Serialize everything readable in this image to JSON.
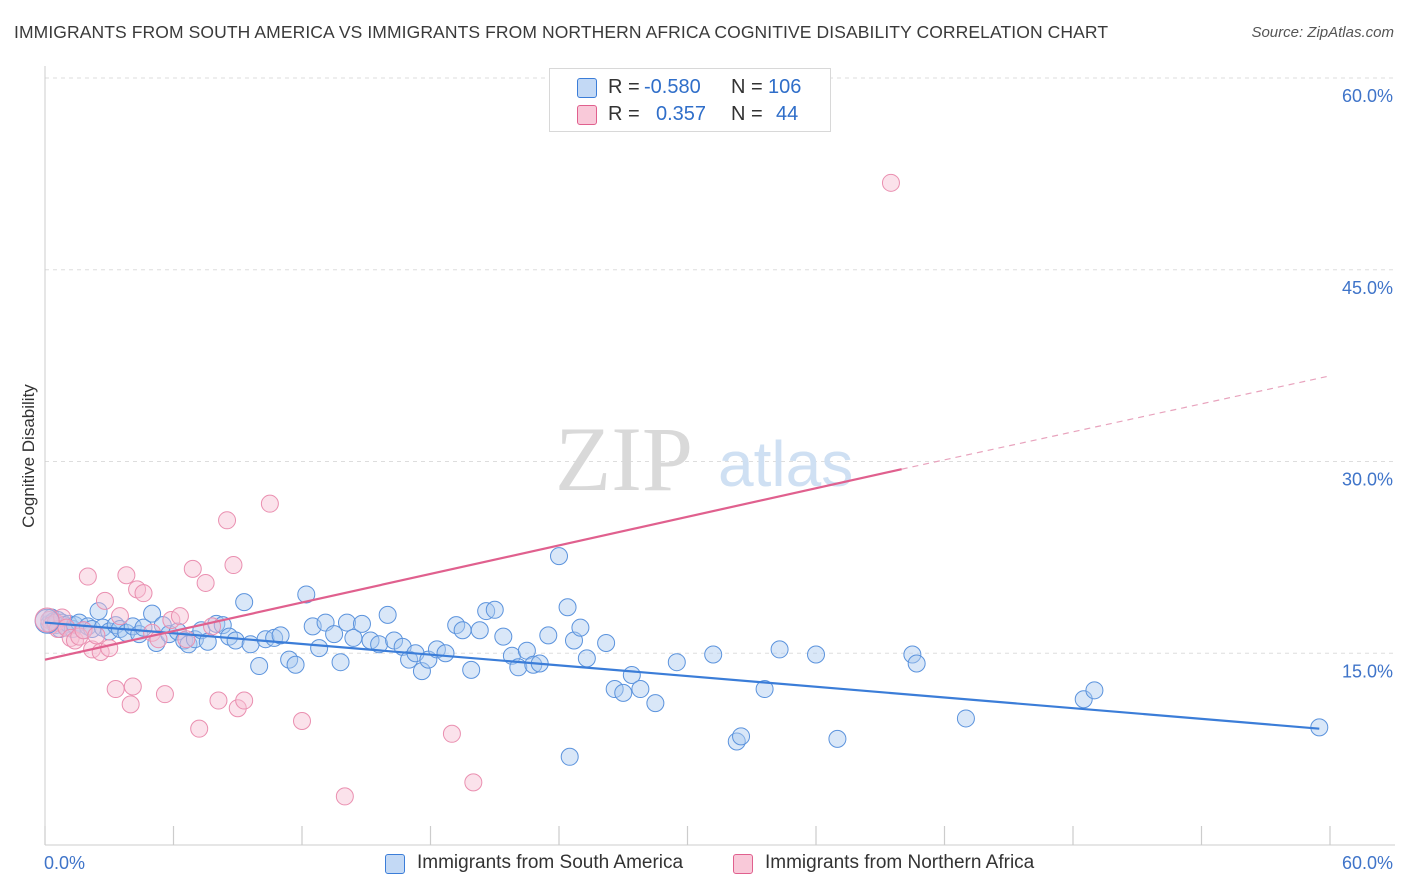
{
  "title": "IMMIGRANTS FROM SOUTH AMERICA VS IMMIGRANTS FROM NORTHERN AFRICA COGNITIVE DISABILITY CORRELATION CHART",
  "source": "Source: ZipAtlas.com",
  "watermark": {
    "zip": "ZIP",
    "atlas": "atlas"
  },
  "colors": {
    "blue": "#2f6ec9",
    "blue_fill": "#aac9f0",
    "blue_line": "#3b7dd8",
    "pink": "#e0608e",
    "pink_fill": "#f7bfd2",
    "tick_text": "#3f74c9"
  },
  "legend": {
    "rows": [
      {
        "r_label": "R =",
        "r_value": "-0.580",
        "n_label": "N =",
        "n_value": "106",
        "series": "blue"
      },
      {
        "r_label": "R =",
        "r_value": "0.357",
        "n_label": "N =",
        "n_value": "44",
        "series": "pink"
      }
    ]
  },
  "bottom_legend": [
    {
      "label": "Immigrants from South America",
      "series": "blue"
    },
    {
      "label": "Immigrants from Northern Africa",
      "series": "pink"
    }
  ],
  "chart_data": {
    "type": "scatter",
    "title": "IMMIGRANTS FROM SOUTH AMERICA VS IMMIGRANTS FROM NORTHERN AFRICA COGNITIVE DISABILITY CORRELATION CHART",
    "xlabel": "",
    "ylabel": "Cognitive Disability",
    "xlim": [
      0,
      60
    ],
    "ylim": [
      0,
      60
    ],
    "x_tick_labels": [
      "0.0%",
      "60.0%"
    ],
    "y_ticks": [
      15,
      30,
      45,
      60
    ],
    "y_tick_labels": [
      "15.0%",
      "30.0%",
      "45.0%",
      "60.0%"
    ],
    "grid": "horizontal dashed",
    "legend_position": "top-center",
    "series": [
      {
        "name": "Immigrants from South America",
        "color": "#2f6ec9",
        "R": -0.58,
        "N": 106,
        "trend": {
          "x0": 0,
          "y0": 17.4,
          "x1": 59.5,
          "y1": 9.1
        },
        "points": [
          [
            0.2,
            17.3
          ],
          [
            0.3,
            17.8
          ],
          [
            0.4,
            17.5
          ],
          [
            0.5,
            17.2
          ],
          [
            0.6,
            17.6
          ],
          [
            0.7,
            16.9
          ],
          [
            0.8,
            17.4
          ],
          [
            0.9,
            17.2
          ],
          [
            1.0,
            17.0
          ],
          [
            1.1,
            17.3
          ],
          [
            1.3,
            16.9
          ],
          [
            1.4,
            17.2
          ],
          [
            1.6,
            17.4
          ],
          [
            1.8,
            16.8
          ],
          [
            2.0,
            17.1
          ],
          [
            2.2,
            16.9
          ],
          [
            2.5,
            18.3
          ],
          [
            2.7,
            17.0
          ],
          [
            3.0,
            16.7
          ],
          [
            3.3,
            17.2
          ],
          [
            3.5,
            16.9
          ],
          [
            3.8,
            16.6
          ],
          [
            4.1,
            17.1
          ],
          [
            4.4,
            16.5
          ],
          [
            4.6,
            17.0
          ],
          [
            5.0,
            18.1
          ],
          [
            5.2,
            15.8
          ],
          [
            5.5,
            17.2
          ],
          [
            5.8,
            16.5
          ],
          [
            6.2,
            16.7
          ],
          [
            6.5,
            16.0
          ],
          [
            6.7,
            15.7
          ],
          [
            7.0,
            16.1
          ],
          [
            7.3,
            16.8
          ],
          [
            7.6,
            15.9
          ],
          [
            8.0,
            17.3
          ],
          [
            8.3,
            17.2
          ],
          [
            8.6,
            16.3
          ],
          [
            8.9,
            16.0
          ],
          [
            9.3,
            19.0
          ],
          [
            9.6,
            15.7
          ],
          [
            10.0,
            14.0
          ],
          [
            10.3,
            16.1
          ],
          [
            10.7,
            16.2
          ],
          [
            11.0,
            16.4
          ],
          [
            11.4,
            14.5
          ],
          [
            11.7,
            14.1
          ],
          [
            12.2,
            19.6
          ],
          [
            12.5,
            17.1
          ],
          [
            12.8,
            15.4
          ],
          [
            13.1,
            17.4
          ],
          [
            13.5,
            16.5
          ],
          [
            13.8,
            14.3
          ],
          [
            14.1,
            17.4
          ],
          [
            14.4,
            16.2
          ],
          [
            14.8,
            17.3
          ],
          [
            15.2,
            16.0
          ],
          [
            15.6,
            15.7
          ],
          [
            16.0,
            18.0
          ],
          [
            16.3,
            16.0
          ],
          [
            16.7,
            15.5
          ],
          [
            17.0,
            14.5
          ],
          [
            17.3,
            15.0
          ],
          [
            17.6,
            13.6
          ],
          [
            17.9,
            14.5
          ],
          [
            18.3,
            15.3
          ],
          [
            18.7,
            15.0
          ],
          [
            19.2,
            17.2
          ],
          [
            19.5,
            16.8
          ],
          [
            19.9,
            13.7
          ],
          [
            20.3,
            16.8
          ],
          [
            20.6,
            18.3
          ],
          [
            21.0,
            18.4
          ],
          [
            21.4,
            16.3
          ],
          [
            21.8,
            14.8
          ],
          [
            22.1,
            13.9
          ],
          [
            22.5,
            15.2
          ],
          [
            22.8,
            14.1
          ],
          [
            23.1,
            14.2
          ],
          [
            23.5,
            16.4
          ],
          [
            24.0,
            22.6
          ],
          [
            24.4,
            18.6
          ],
          [
            24.7,
            16.0
          ],
          [
            25.0,
            17.0
          ],
          [
            25.3,
            14.6
          ],
          [
            26.2,
            15.8
          ],
          [
            26.6,
            12.2
          ],
          [
            27.0,
            11.9
          ],
          [
            27.4,
            13.3
          ],
          [
            27.8,
            12.2
          ],
          [
            28.5,
            11.1
          ],
          [
            29.5,
            14.3
          ],
          [
            31.2,
            14.9
          ],
          [
            32.3,
            8.1
          ],
          [
            32.5,
            8.5
          ],
          [
            33.6,
            12.2
          ],
          [
            34.3,
            15.3
          ],
          [
            36.0,
            14.9
          ],
          [
            37.0,
            8.3
          ],
          [
            40.5,
            14.9
          ],
          [
            40.7,
            14.2
          ],
          [
            43.0,
            9.9
          ],
          [
            48.5,
            11.4
          ],
          [
            49.0,
            12.1
          ],
          [
            59.5,
            9.2
          ],
          [
            24.5,
            6.9
          ]
        ]
      },
      {
        "name": "Immigrants from Northern Africa",
        "color": "#e0608e",
        "R": 0.357,
        "N": 44,
        "trend": {
          "x0": 0,
          "y0": 14.5,
          "x1": 40,
          "y1": 29.4,
          "dashed_to_x": 60,
          "dashed_to_y": 36.7
        },
        "points": [
          [
            0.2,
            17.6
          ],
          [
            0.3,
            17.2
          ],
          [
            0.5,
            17.4
          ],
          [
            0.6,
            16.9
          ],
          [
            0.8,
            17.8
          ],
          [
            1.0,
            17.0
          ],
          [
            1.2,
            16.2
          ],
          [
            1.4,
            16.0
          ],
          [
            1.6,
            16.3
          ],
          [
            1.8,
            16.8
          ],
          [
            2.0,
            21.0
          ],
          [
            2.2,
            15.3
          ],
          [
            2.4,
            16.4
          ],
          [
            2.6,
            15.1
          ],
          [
            2.8,
            19.1
          ],
          [
            3.0,
            15.4
          ],
          [
            3.3,
            12.2
          ],
          [
            3.5,
            17.9
          ],
          [
            3.8,
            21.1
          ],
          [
            4.1,
            12.4
          ],
          [
            4.3,
            20.0
          ],
          [
            4.6,
            19.7
          ],
          [
            5.0,
            16.6
          ],
          [
            5.3,
            16.1
          ],
          [
            5.6,
            11.8
          ],
          [
            5.9,
            17.6
          ],
          [
            6.3,
            17.9
          ],
          [
            6.6,
            16.1
          ],
          [
            6.9,
            21.6
          ],
          [
            7.2,
            9.1
          ],
          [
            7.5,
            20.5
          ],
          [
            7.8,
            17.1
          ],
          [
            8.1,
            11.3
          ],
          [
            8.5,
            25.4
          ],
          [
            8.8,
            21.9
          ],
          [
            9.0,
            10.7
          ],
          [
            9.3,
            11.3
          ],
          [
            10.5,
            26.7
          ],
          [
            12.0,
            9.7
          ],
          [
            14.0,
            3.8
          ],
          [
            19.0,
            8.7
          ],
          [
            20.0,
            4.9
          ],
          [
            39.5,
            51.8
          ],
          [
            4.0,
            11.0
          ]
        ]
      }
    ]
  }
}
